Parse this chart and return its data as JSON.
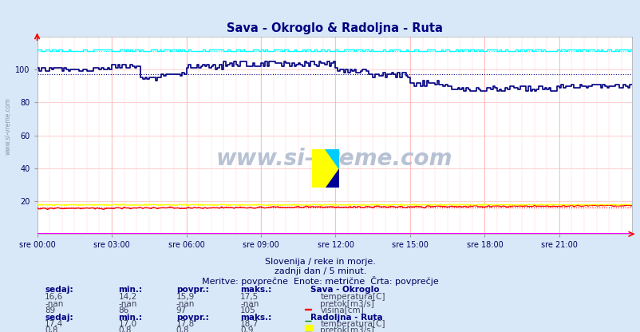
{
  "title": "Sava - Okroglo & Radoljna - Ruta",
  "title_color": "#000080",
  "bg_color": "#d8e8f8",
  "plot_bg_color": "#ffffff",
  "subtitle1": "Slovenija / reke in morje.",
  "subtitle2": "zadnji dan / 5 minut.",
  "subtitle3": "Meritve: povprečne  Enote: metrične  Črta: povprečje",
  "xlabel_ticks": [
    "sre 00:00",
    "sre 03:00",
    "sre 06:00",
    "sre 09:00",
    "sre 12:00",
    "sre 15:00",
    "sre 18:00",
    "sre 21:00"
  ],
  "xlabel_tick_positions": [
    0,
    36,
    72,
    108,
    144,
    180,
    216,
    252
  ],
  "n_points": 288,
  "ylim": [
    0,
    120
  ],
  "yticks": [
    20,
    40,
    60,
    80,
    100
  ],
  "sava_temp_color": "#ff0000",
  "sava_pretok_color": "#008800",
  "sava_visina_color": "#000080",
  "sava_temp_avg": 15.9,
  "sava_visina_avg": 97,
  "radoljna_temp_color": "#ffff00",
  "radoljna_pretok_color": "#ff00ff",
  "radoljna_visina_color": "#00ffff",
  "radoljna_temp_avg": 17.8,
  "radoljna_pretok_avg": 0.8,
  "radoljna_visina_avg": 111,
  "table_label_color": "#000080",
  "table_text_color": "#404060",
  "watermark": "www.si-vreme.com",
  "watermark_color": "#b0bcd0",
  "left_watermark": "www.si-vreme.com"
}
